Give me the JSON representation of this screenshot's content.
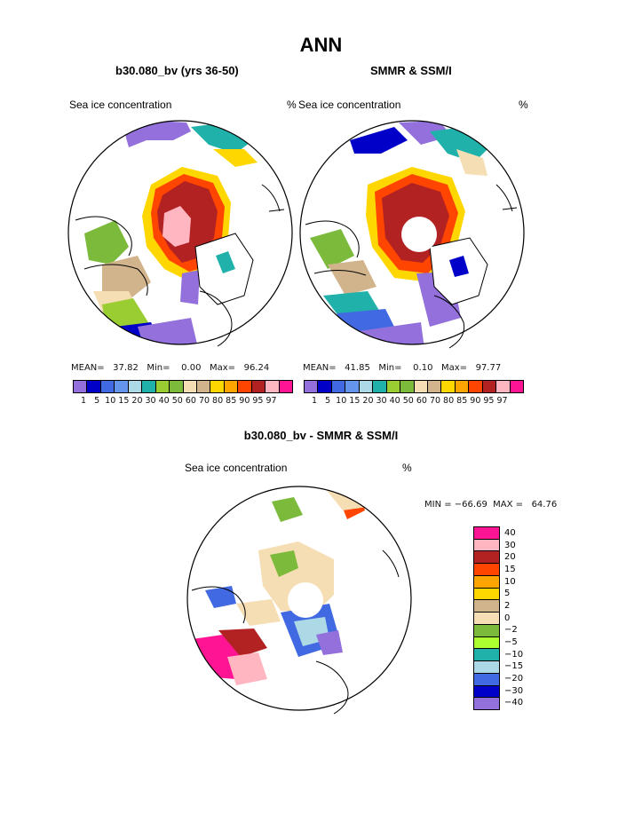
{
  "title": "ANN",
  "panels": {
    "model": {
      "title": "b30.080_bv (yrs 36-50)",
      "left_label": "Sea ice concentration",
      "right_label": "%",
      "stats": "MEAN=   37.82   Min=    0.00   Max=   96.24"
    },
    "obs": {
      "title": "SMMR & SSM/I",
      "left_label": "Sea ice concentration",
      "right_label": "%",
      "stats": "MEAN=   41.85   Min=    0.10   Max=   97.77"
    },
    "diff": {
      "title": "b30.080_bv - SMMR & SSM/I",
      "left_label": "Sea ice concentration",
      "right_label": "%",
      "stats": "MIN = −66.69  MAX =   64.76"
    }
  },
  "conc_scale": {
    "colors": [
      "#9370db",
      "#0000c8",
      "#4169e1",
      "#6495ed",
      "#add8e6",
      "#20b2aa",
      "#9acd32",
      "#7cba3c",
      "#f5deb3",
      "#d2b48c",
      "#ffd700",
      "#ffa500",
      "#ff4500",
      "#b22222",
      "#ffb6c1",
      "#ff1493"
    ],
    "tick_text": "1   5  10 15 20 30 40 50 60 70 80 85 90 95 97"
  },
  "diff_scale": {
    "colors": [
      "#ff1493",
      "#ffb6c1",
      "#b22222",
      "#ff4500",
      "#ffa500",
      "#ffd700",
      "#d2b48c",
      "#f5deb3",
      "#7cba3c",
      "#adff2f",
      "#20b2aa",
      "#add8e6",
      "#4169e1",
      "#0000c8",
      "#9370db"
    ],
    "labels": [
      "40",
      "30",
      "20",
      "15",
      "10",
      "5",
      "2",
      "0",
      "−2",
      "−5",
      "−10",
      "−15",
      "−20",
      "−30",
      "−40"
    ]
  }
}
